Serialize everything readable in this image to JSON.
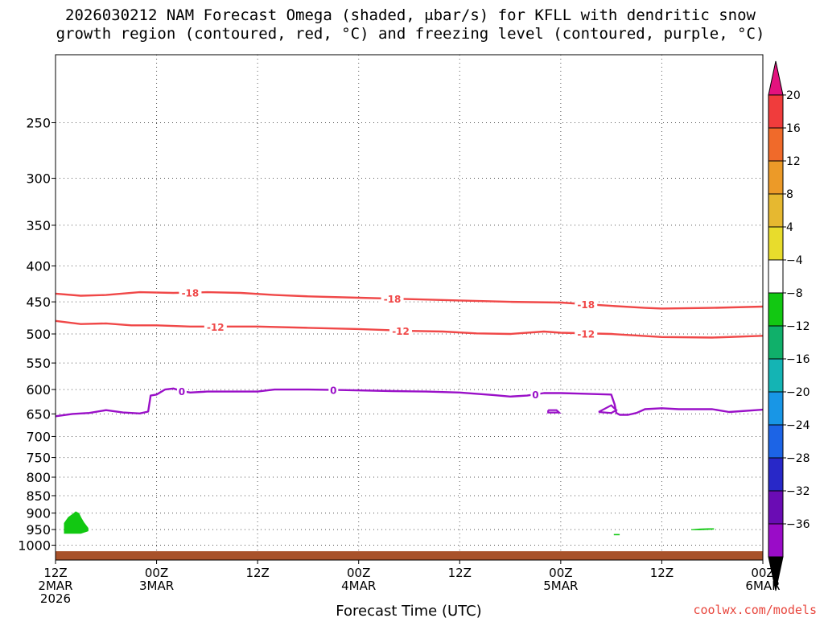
{
  "chart_data": {
    "type": "heatmap",
    "title_lines": [
      "2026030212 NAM Forecast Omega (shaded, μbar/s) for KFLL with dendritic snow",
      "growth region (contoured, red, °C) and freezing level (contoured, purple, °C)"
    ],
    "xlabel": "Forecast Time (UTC)",
    "ylabel": "",
    "x_unit": "hours since 2026-03-02 12Z",
    "xlim": [
      0,
      84
    ],
    "ylim": [
      1050,
      200
    ],
    "y_scale": "log-pressure",
    "y_ticks": [
      250,
      300,
      350,
      400,
      450,
      500,
      550,
      600,
      650,
      700,
      750,
      800,
      850,
      900,
      950,
      1000
    ],
    "x_ticks": [
      {
        "t": 0,
        "lines": [
          "12Z",
          "2MAR",
          "2026"
        ]
      },
      {
        "t": 12,
        "lines": [
          "00Z",
          "3MAR"
        ]
      },
      {
        "t": 24,
        "lines": [
          "12Z"
        ]
      },
      {
        "t": 36,
        "lines": [
          "00Z",
          "4MAR"
        ]
      },
      {
        "t": 48,
        "lines": [
          "12Z"
        ]
      },
      {
        "t": 60,
        "lines": [
          "00Z",
          "5MAR"
        ]
      },
      {
        "t": 72,
        "lines": [
          "12Z"
        ]
      },
      {
        "t": 84,
        "lines": [
          "00Z",
          "6MAR"
        ]
      }
    ],
    "grid": true,
    "colorbar": {
      "levels": [
        20,
        16,
        12,
        8,
        4,
        -4,
        -8,
        -12,
        -16,
        -20,
        -24,
        -28,
        -32,
        -36
      ],
      "labels": [
        "20",
        "16",
        "12",
        "8",
        "4",
        "−4",
        "−8",
        "−12",
        "−16",
        "−20",
        "−24",
        "−28",
        "−32",
        "−36"
      ],
      "colors": [
        "#e3127e",
        "#f03c3c",
        "#f06a2a",
        "#ec9a28",
        "#e6b830",
        "#e8dc2c",
        "#ffffff",
        "#12c812",
        "#10b06a",
        "#14b4b4",
        "#1896e6",
        "#1c64e6",
        "#2828c8",
        "#6a0cb4",
        "#9a0cc8",
        "#a0a0a0",
        "#000000"
      ]
    },
    "series": [
      {
        "name": "-18 °C isotherm",
        "color": "#f04848",
        "label": "-18",
        "label_at": [
          16,
          40,
          63
        ],
        "points": [
          [
            0,
            438
          ],
          [
            3,
            441
          ],
          [
            6,
            440
          ],
          [
            10,
            436
          ],
          [
            14,
            437
          ],
          [
            18,
            436
          ],
          [
            22,
            437
          ],
          [
            26,
            440
          ],
          [
            30,
            442
          ],
          [
            36,
            444
          ],
          [
            42,
            446
          ],
          [
            48,
            448
          ],
          [
            54,
            450
          ],
          [
            60,
            451
          ],
          [
            66,
            456
          ],
          [
            70,
            459
          ],
          [
            72,
            460
          ],
          [
            78,
            459
          ],
          [
            84,
            457
          ]
        ]
      },
      {
        "name": "-12 °C isotherm",
        "color": "#f04848",
        "label": "-12",
        "label_at": [
          19,
          41,
          63
        ],
        "points": [
          [
            0,
            479
          ],
          [
            3,
            484
          ],
          [
            6,
            483
          ],
          [
            9,
            486
          ],
          [
            12,
            486
          ],
          [
            16,
            488
          ],
          [
            20,
            488
          ],
          [
            24,
            488
          ],
          [
            30,
            490
          ],
          [
            36,
            492
          ],
          [
            42,
            495
          ],
          [
            46,
            496
          ],
          [
            50,
            499
          ],
          [
            54,
            500
          ],
          [
            58,
            496
          ],
          [
            60,
            498
          ],
          [
            66,
            500
          ],
          [
            72,
            505
          ],
          [
            78,
            506
          ],
          [
            84,
            503
          ]
        ]
      },
      {
        "name": "0 °C freezing level",
        "color": "#9a10c8",
        "label": "0",
        "label_at": [
          15,
          33,
          57
        ],
        "points": [
          [
            0,
            655
          ],
          [
            2,
            650
          ],
          [
            4,
            648
          ],
          [
            6,
            642
          ],
          [
            8,
            647
          ],
          [
            10,
            649
          ],
          [
            11,
            645
          ],
          [
            11.3,
            612
          ],
          [
            12,
            610
          ],
          [
            13,
            600
          ],
          [
            14,
            598
          ],
          [
            15,
            603
          ],
          [
            16,
            606
          ],
          [
            18,
            604
          ],
          [
            20,
            604
          ],
          [
            24,
            604
          ],
          [
            26,
            600
          ],
          [
            30,
            600
          ],
          [
            34,
            601
          ],
          [
            40,
            603
          ],
          [
            44,
            604
          ],
          [
            48,
            606
          ],
          [
            52,
            611
          ],
          [
            54,
            614
          ],
          [
            56,
            612
          ],
          [
            58,
            607
          ],
          [
            60,
            607
          ],
          [
            62,
            608
          ],
          [
            66,
            610
          ],
          [
            66.4,
            630
          ],
          [
            66.6,
            648
          ],
          [
            67,
            652
          ],
          [
            68,
            652
          ],
          [
            69,
            648
          ],
          [
            70,
            640
          ],
          [
            72,
            638
          ],
          [
            74,
            640
          ],
          [
            78,
            640
          ],
          [
            80,
            646
          ],
          [
            84,
            641
          ]
        ]
      }
    ],
    "small_contours": [
      {
        "name": "0 °C closed contour 1",
        "color": "#9a10c8",
        "points": [
          [
            58.5,
            642
          ],
          [
            59.5,
            642
          ],
          [
            59.8,
            647
          ],
          [
            58.5,
            647
          ],
          [
            58.5,
            642
          ]
        ]
      },
      {
        "name": "0 °C closed contour 2",
        "color": "#9a10c8",
        "points": [
          [
            64.5,
            646
          ],
          [
            66,
            632
          ],
          [
            66.6,
            642
          ],
          [
            66,
            648
          ],
          [
            64.5,
            646
          ]
        ]
      }
    ],
    "shaded_regions": [
      {
        "name": "omega -4 to -8 patch",
        "color": "#12c812",
        "points": [
          [
            1,
            930
          ],
          [
            1.5,
            912
          ],
          [
            2,
            903
          ],
          [
            2.4,
            895
          ],
          [
            2.8,
            900
          ],
          [
            3.1,
            915
          ],
          [
            3.4,
            928
          ],
          [
            3.9,
            945
          ],
          [
            3.9,
            955
          ],
          [
            3,
            963
          ],
          [
            1,
            963
          ],
          [
            1,
            930
          ]
        ]
      },
      {
        "name": "omega small patch 1",
        "color": "#12c812",
        "points": [
          [
            66.3,
            964
          ],
          [
            67,
            964
          ],
          [
            67,
            968
          ],
          [
            66.3,
            968
          ],
          [
            66.3,
            964
          ]
        ]
      },
      {
        "name": "omega small patch 2",
        "color": "#12c812",
        "points": [
          [
            75.5,
            949
          ],
          [
            76.5,
            947
          ],
          [
            77.5,
            946
          ],
          [
            78.2,
            946
          ],
          [
            78.2,
            950
          ],
          [
            76.5,
            952
          ],
          [
            75.5,
            952
          ],
          [
            75.5,
            949
          ]
        ]
      }
    ],
    "terrain": {
      "name": "surface / ground",
      "color": "#a8522a",
      "top_hpa": 1020
    }
  },
  "credit": "coolwx.com/models"
}
